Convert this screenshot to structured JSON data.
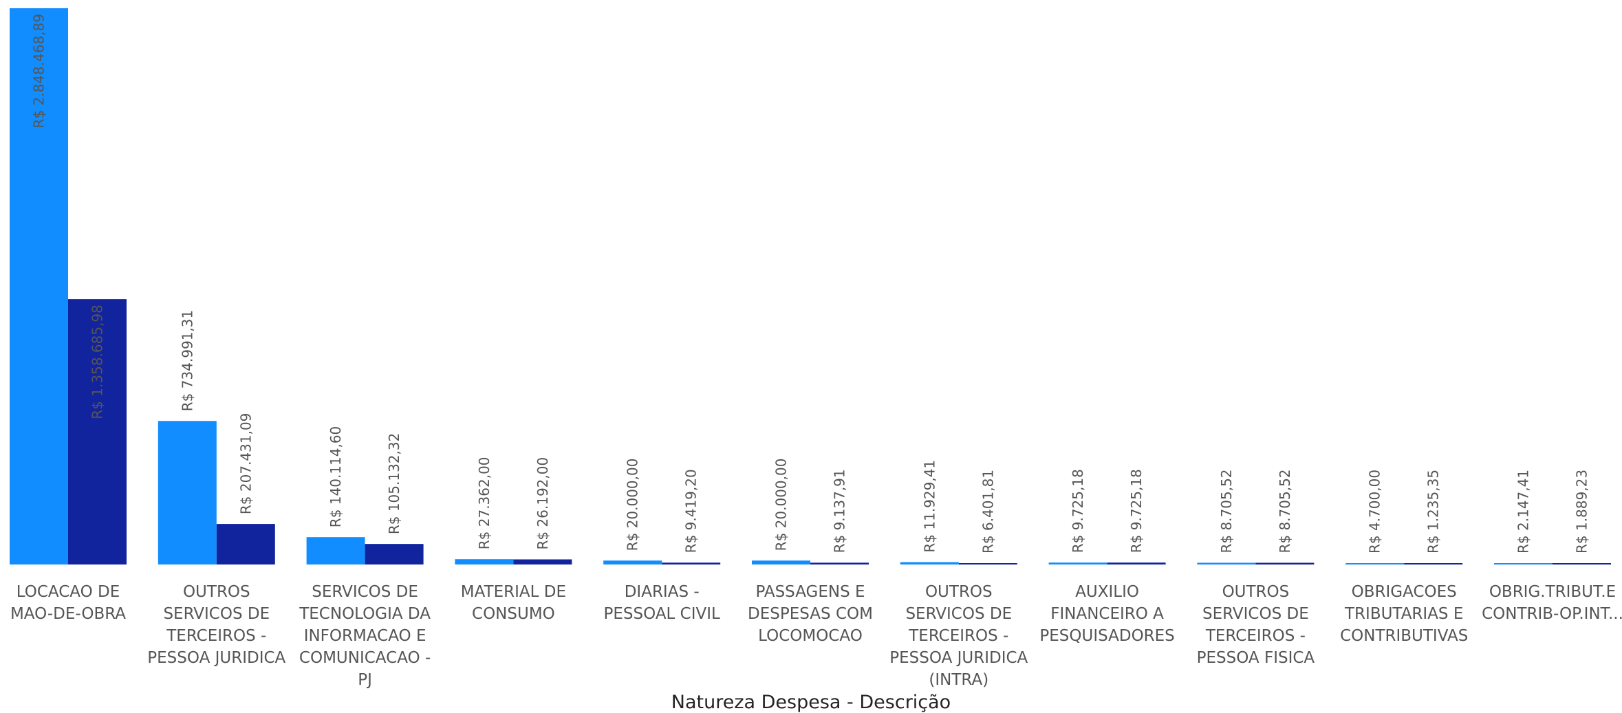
{
  "chart_data": {
    "type": "bar",
    "xlabel": "Natureza Despesa - Descrição",
    "ylabel": "",
    "ylim": [
      0,
      2848468.89
    ],
    "grid": false,
    "legend": "none",
    "categories": [
      "LOCACAO DE MAO-DE-OBRA",
      "OUTROS SERVICOS DE TERCEIROS - PESSOA JURIDICA",
      "SERVICOS DE TECNOLOGIA DA INFORMACAO E COMUNICACAO - PJ",
      "MATERIAL DE CONSUMO",
      "DIARIAS - PESSOAL CIVIL",
      "PASSAGENS E DESPESAS COM LOCOMOCAO",
      "OUTROS SERVICOS DE TERCEIROS - PESSOA JURIDICA (INTRA)",
      "AUXILIO FINANCEIRO A PESQUISADORES",
      "OUTROS SERVICOS DE TERCEIROS - PESSOA FISICA",
      "OBRIGACOES TRIBUTARIAS E CONTRIBUTIVAS",
      "OBRIG.TRIBUT.E CONTRIB-OP.INT..."
    ],
    "category_lines": [
      [
        "LOCACAO DE",
        "MAO-DE-OBRA"
      ],
      [
        "OUTROS",
        "SERVICOS DE",
        "TERCEIROS -",
        "PESSOA JURIDICA"
      ],
      [
        "SERVICOS DE",
        "TECNOLOGIA DA",
        "INFORMACAO E",
        "COMUNICACAO -",
        "PJ"
      ],
      [
        "MATERIAL DE",
        "CONSUMO"
      ],
      [
        "DIARIAS -",
        "PESSOAL CIVIL"
      ],
      [
        "PASSAGENS E",
        "DESPESAS COM",
        "LOCOMOCAO"
      ],
      [
        "OUTROS",
        "SERVICOS DE",
        "TERCEIROS -",
        "PESSOA JURIDICA",
        "(INTRA)"
      ],
      [
        "AUXILIO",
        "FINANCEIRO A",
        "PESQUISADORES"
      ],
      [
        "OUTROS",
        "SERVICOS DE",
        "TERCEIROS -",
        "PESSOA FISICA"
      ],
      [
        "OBRIGACOES",
        "TRIBUTARIAS E",
        "CONTRIBUTIVAS"
      ],
      [
        "OBRIG.TRIBUT.E",
        "CONTRIB-OP.INT..."
      ]
    ],
    "series": [
      {
        "color": "#118DFF",
        "values": [
          2848468.89,
          734991.31,
          140114.6,
          27362.0,
          20000.0,
          20000.0,
          11929.41,
          9725.18,
          8705.52,
          4700.0,
          2147.41
        ],
        "labels": [
          "R$ 2.848.468,89",
          "R$ 734.991,31",
          "R$ 140.114,60",
          "R$ 27.362,00",
          "R$ 20.000,00",
          "R$ 20.000,00",
          "R$ 11.929,41",
          "R$ 9.725,18",
          "R$ 8.705,52",
          "R$ 4.700,00",
          "R$ 2.147,41"
        ]
      },
      {
        "color": "#12239E",
        "values": [
          1358685.98,
          207431.09,
          105132.32,
          26192.0,
          9419.2,
          9137.91,
          6401.81,
          9725.18,
          8705.52,
          1235.35,
          1889.23
        ],
        "labels": [
          "R$ 1.358.685,98",
          "R$ 207.431,09",
          "R$ 105.132,32",
          "R$ 26.192,00",
          "R$ 9.419,20",
          "R$ 9.137,91",
          "R$ 6.401,81",
          "R$ 9.725,18",
          "R$ 8.705,52",
          "R$ 1.235,35",
          "R$ 1.889,23"
        ]
      }
    ]
  }
}
